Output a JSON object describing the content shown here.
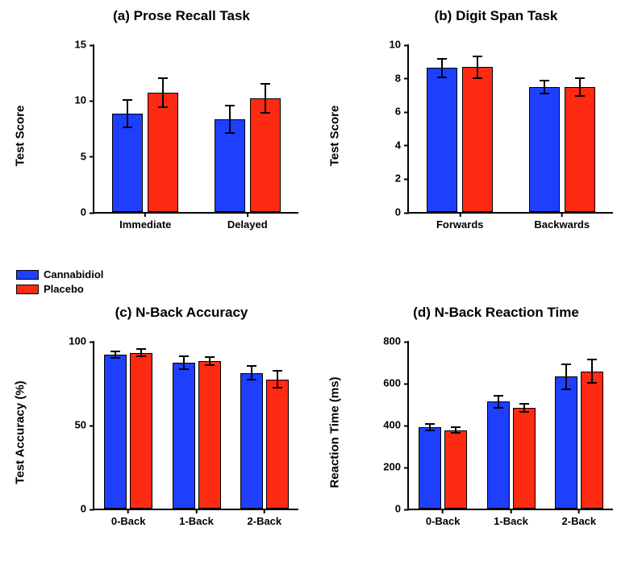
{
  "colors": {
    "cbd": "#1f3fff",
    "placebo": "#ff2a12",
    "axis": "#000000",
    "background": "#ffffff"
  },
  "legend": {
    "items": [
      {
        "label": "Cannabidiol",
        "color": "#1f3fff"
      },
      {
        "label": "Placebo",
        "color": "#ff2a12"
      }
    ]
  },
  "panels": {
    "a": {
      "tag": "(a)",
      "title": "Prose Recall Task",
      "title_fontsize": 17,
      "ylabel": "Test Score",
      "label_fontsize": 15,
      "type": "bar",
      "ylim": [
        0,
        15
      ],
      "yticks": [
        0,
        5,
        10,
        15
      ],
      "categories": [
        "Immediate",
        "Delayed"
      ],
      "series": [
        {
          "name": "Cannabidiol",
          "color": "#1f3fff",
          "values": [
            8.8,
            8.3
          ],
          "err": [
            1.2,
            1.2
          ]
        },
        {
          "name": "Placebo",
          "color": "#ff2a12",
          "values": [
            10.7,
            10.2
          ],
          "err": [
            1.3,
            1.3
          ]
        }
      ],
      "bar_width": 0.35,
      "tick_fontsize": 13
    },
    "b": {
      "tag": "(b)",
      "title": "Digit Span Task",
      "title_fontsize": 17,
      "ylabel": "Test Score",
      "label_fontsize": 15,
      "type": "bar",
      "ylim": [
        0,
        10
      ],
      "yticks": [
        0,
        2,
        4,
        6,
        8,
        10
      ],
      "categories": [
        "Forwards",
        "Backwards"
      ],
      "series": [
        {
          "name": "Cannabidiol",
          "color": "#1f3fff",
          "values": [
            8.6,
            7.45
          ],
          "err": [
            0.55,
            0.4
          ]
        },
        {
          "name": "Placebo",
          "color": "#ff2a12",
          "values": [
            8.65,
            7.45
          ],
          "err": [
            0.65,
            0.55
          ]
        }
      ],
      "bar_width": 0.35,
      "tick_fontsize": 13
    },
    "c": {
      "tag": "(c)",
      "title": "N-Back Accuracy",
      "title_fontsize": 17,
      "ylabel": "Test Accuracy (%)",
      "label_fontsize": 15,
      "type": "bar",
      "ylim": [
        0,
        100
      ],
      "yticks": [
        0,
        50,
        100
      ],
      "categories": [
        "0-Back",
        "1-Back",
        "2-Back"
      ],
      "series": [
        {
          "name": "Cannabidiol",
          "color": "#1f3fff",
          "values": [
            92,
            87,
            81
          ],
          "err": [
            2,
            4,
            4
          ]
        },
        {
          "name": "Placebo",
          "color": "#ff2a12",
          "values": [
            93,
            88,
            77
          ],
          "err": [
            2,
            2.5,
            5
          ]
        }
      ],
      "bar_width": 0.35,
      "tick_fontsize": 13
    },
    "d": {
      "tag": "(d)",
      "title": "N-Back Reaction Time",
      "title_fontsize": 17,
      "ylabel": "Reaction Time (ms)",
      "label_fontsize": 15,
      "type": "bar",
      "ylim": [
        0,
        800
      ],
      "yticks": [
        0,
        200,
        400,
        600,
        800
      ],
      "categories": [
        "0-Back",
        "1-Back",
        "2-Back"
      ],
      "series": [
        {
          "name": "Cannabidiol",
          "color": "#1f3fff",
          "values": [
            390,
            510,
            630
          ],
          "err": [
            15,
            30,
            60
          ]
        },
        {
          "name": "Placebo",
          "color": "#ff2a12",
          "values": [
            375,
            480,
            655
          ],
          "err": [
            15,
            20,
            55
          ]
        }
      ],
      "bar_width": 0.35,
      "tick_fontsize": 13
    }
  }
}
